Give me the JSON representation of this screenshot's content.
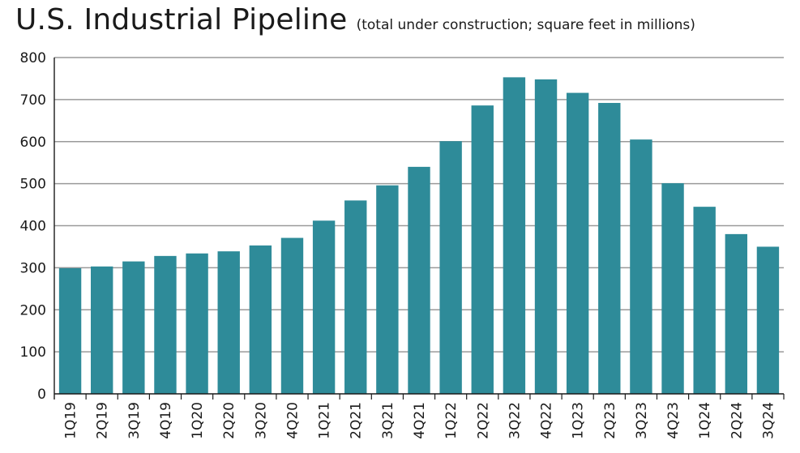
{
  "chart_data": {
    "type": "bar",
    "title": "U.S. Industrial Pipeline",
    "subtitle": "(total under construction; square feet in millions)",
    "xlabel": "",
    "ylabel": "",
    "ylim": [
      0,
      800
    ],
    "yticks": [
      "0",
      "100",
      "200",
      "300",
      "400",
      "500",
      "600",
      "700",
      "800"
    ],
    "grid": true,
    "legend": "none",
    "bar_color": "#2e8b99",
    "categories": [
      "1Q19",
      "2Q19",
      "3Q19",
      "4Q19",
      "1Q20",
      "2Q20",
      "3Q20",
      "4Q20",
      "1Q21",
      "2Q21",
      "3Q21",
      "4Q21",
      "1Q22",
      "2Q22",
      "3Q22",
      "4Q22",
      "1Q23",
      "2Q23",
      "3Q23",
      "4Q23",
      "1Q24",
      "2Q24",
      "3Q24"
    ],
    "values": [
      299,
      303,
      315,
      328,
      334,
      339,
      353,
      371,
      412,
      460,
      496,
      540,
      601,
      686,
      753,
      748,
      716,
      692,
      605,
      501,
      445,
      380,
      350
    ]
  }
}
